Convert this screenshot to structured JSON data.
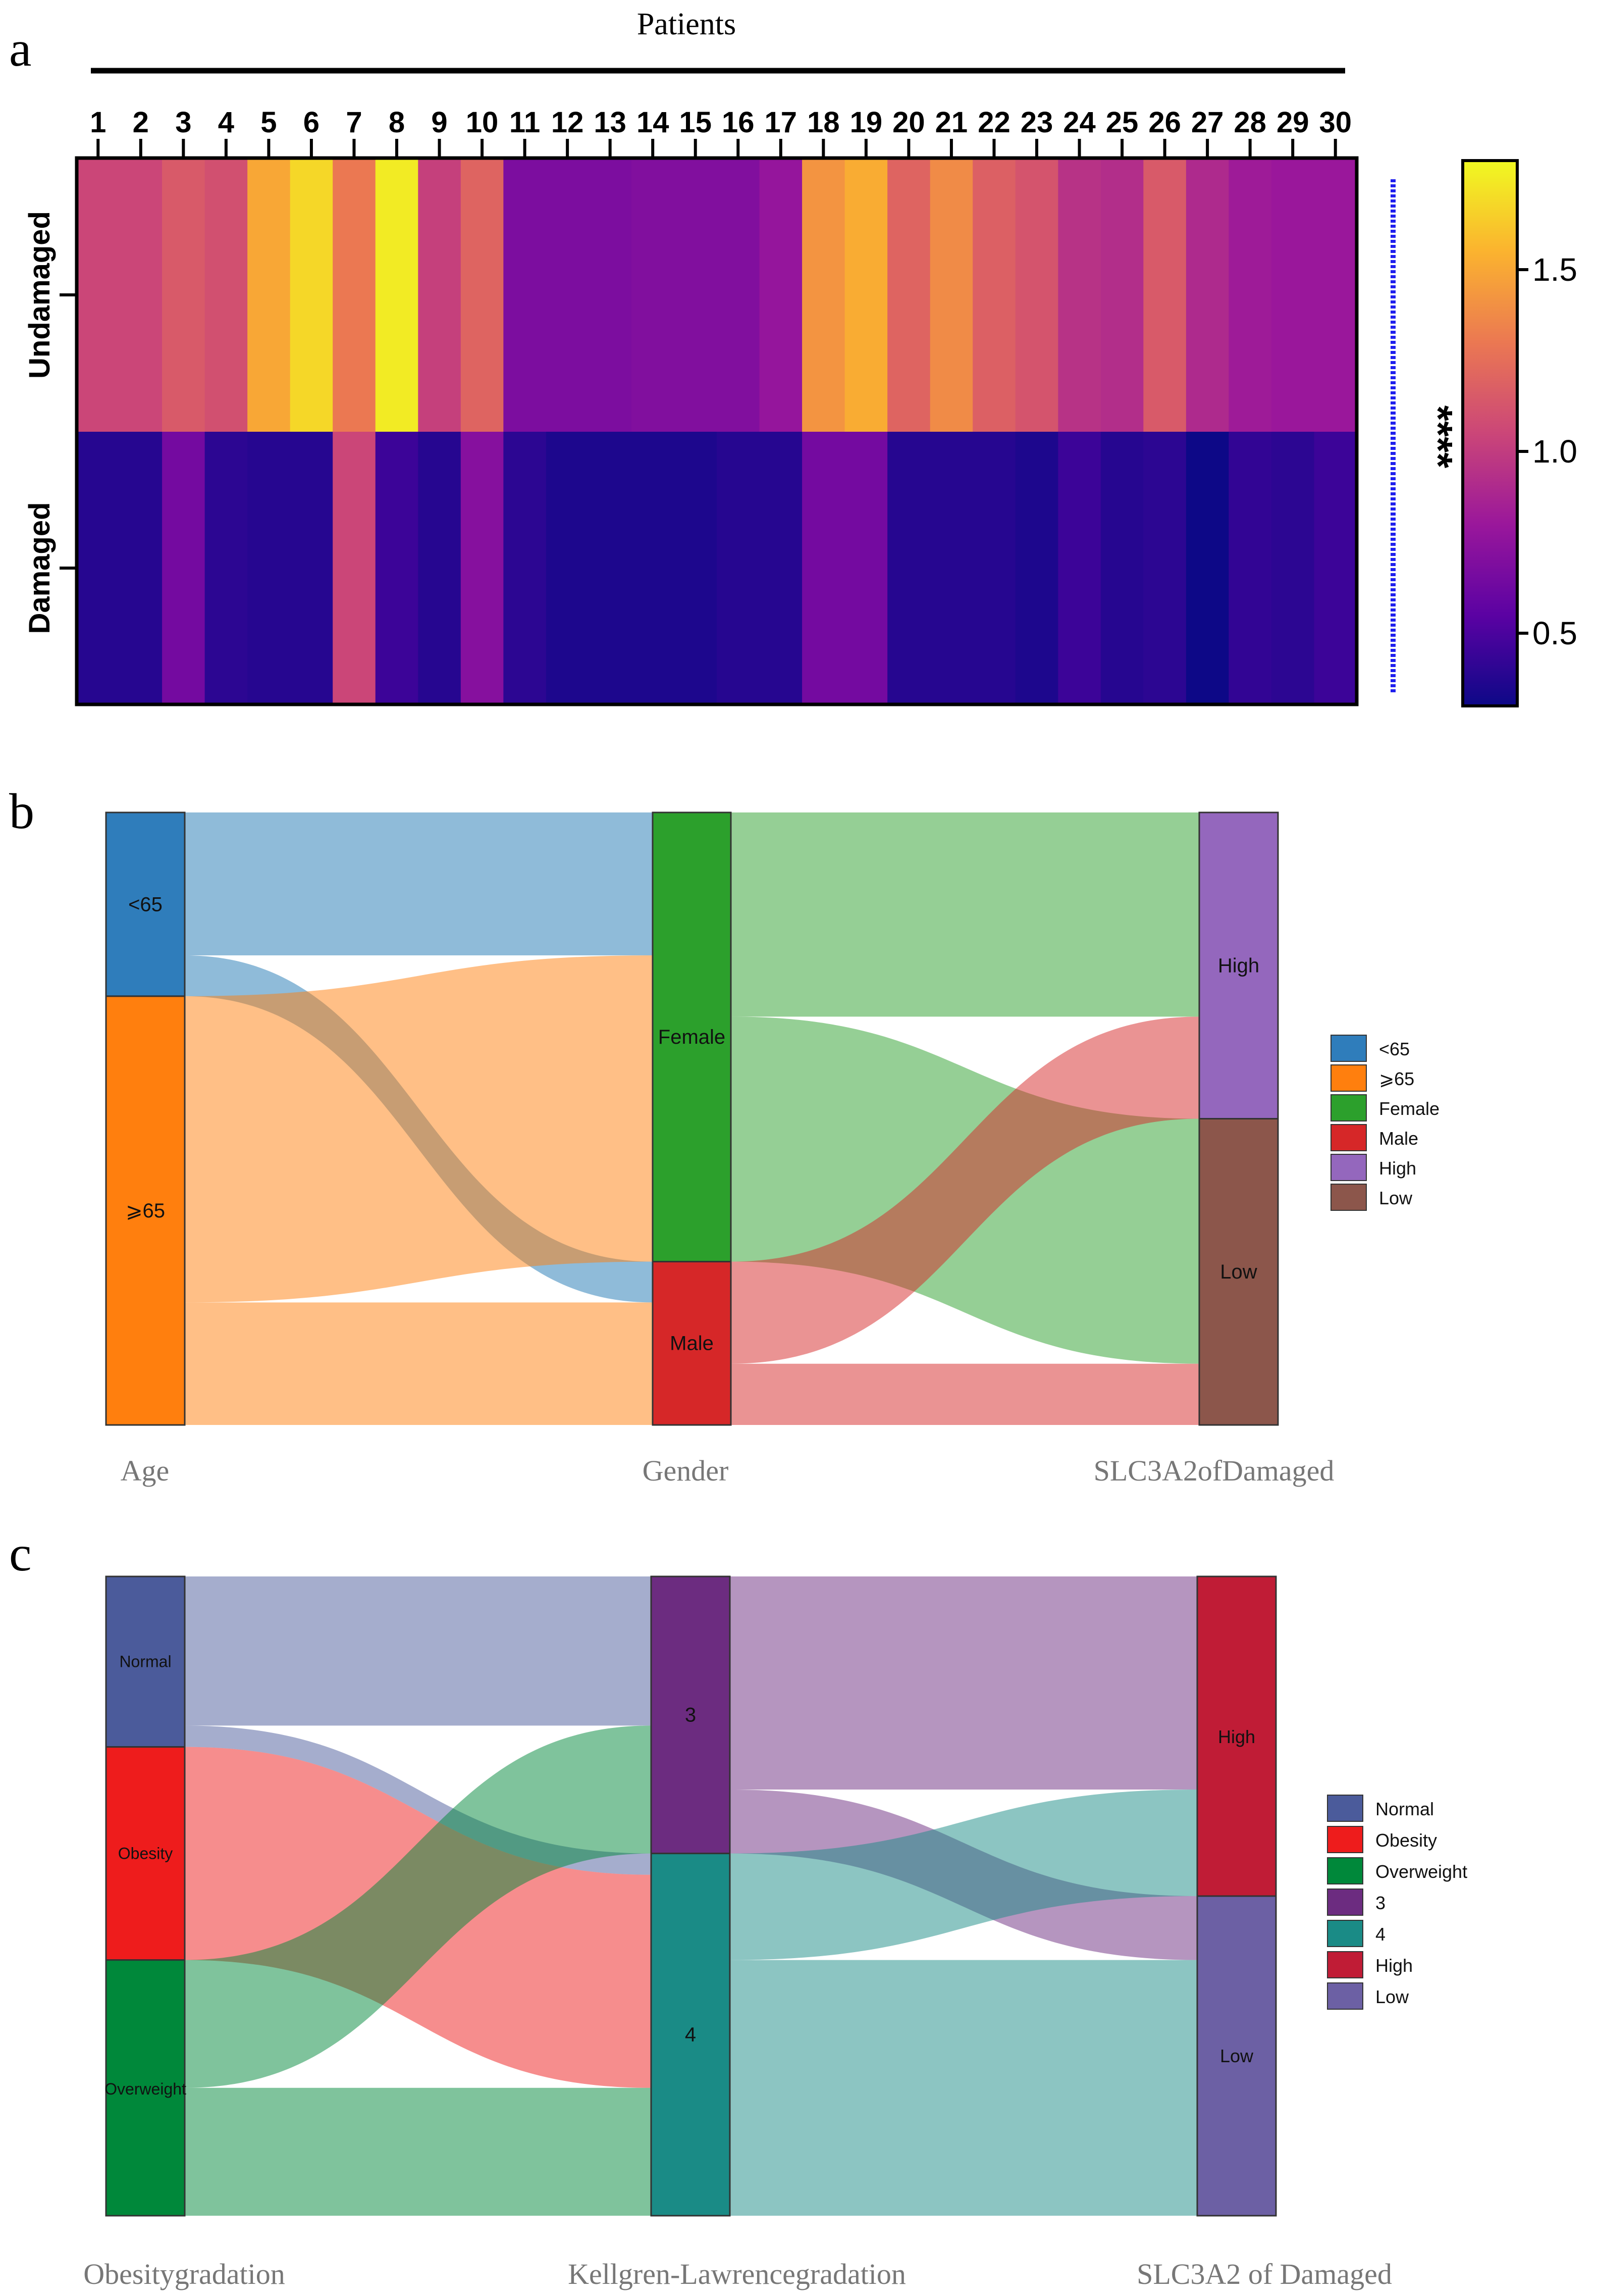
{
  "figure": {
    "panel_labels": [
      "a",
      "b",
      "c"
    ]
  },
  "chart_data": [
    {
      "type": "heatmap",
      "panel": "a",
      "title": "Patients",
      "columns": [
        "1",
        "2",
        "3",
        "4",
        "5",
        "6",
        "7",
        "8",
        "9",
        "10",
        "11",
        "12",
        "13",
        "14",
        "15",
        "16",
        "17",
        "18",
        "19",
        "20",
        "21",
        "22",
        "23",
        "24",
        "25",
        "26",
        "27",
        "28",
        "29",
        "30"
      ],
      "rows": [
        "Undamaged",
        "Damaged"
      ],
      "values": [
        [
          1.05,
          1.05,
          1.15,
          1.1,
          1.5,
          1.68,
          1.3,
          1.75,
          1.02,
          1.2,
          0.68,
          0.68,
          0.68,
          0.7,
          0.7,
          0.7,
          0.78,
          1.42,
          1.52,
          1.2,
          1.38,
          1.18,
          1.12,
          0.95,
          0.92,
          1.15,
          0.9,
          0.82,
          0.8,
          0.8
        ],
        [
          0.38,
          0.38,
          0.65,
          0.4,
          0.38,
          0.38,
          1.05,
          0.45,
          0.38,
          0.72,
          0.4,
          0.35,
          0.35,
          0.35,
          0.35,
          0.38,
          0.38,
          0.65,
          0.65,
          0.38,
          0.38,
          0.38,
          0.35,
          0.45,
          0.38,
          0.4,
          0.3,
          0.42,
          0.4,
          0.45
        ]
      ],
      "colorbar": {
        "ticks": [
          0.5,
          1.0,
          1.5
        ],
        "tick_labels": [
          "0.5",
          "1.0",
          "1.5"
        ],
        "range": [
          0.3,
          1.8
        ]
      },
      "significance": "****",
      "colormap": [
        "#0d0887",
        "#5b02a3",
        "#9a179b",
        "#cb4678",
        "#eb7852",
        "#fbb32f",
        "#f0f921"
      ]
    },
    {
      "type": "alluvial",
      "panel": "b",
      "axes": [
        {
          "title": "Age",
          "categories": [
            {
              "label": "<65",
              "count": 9,
              "color": "#2f7dbb"
            },
            {
              "label": "⩾65",
              "count": 21,
              "color": "#ff7f0e"
            }
          ]
        },
        {
          "title": "Gender",
          "categories": [
            {
              "label": "Female",
              "count": 22,
              "color": "#2ca02c"
            },
            {
              "label": "Male",
              "count": 8,
              "color": "#d62728"
            }
          ]
        },
        {
          "title": "SLC3A2ofDamaged",
          "categories": [
            {
              "label": "High",
              "count": 15,
              "color": "#9467bd"
            },
            {
              "label": "Low",
              "count": 15,
              "color": "#8c564b"
            }
          ]
        }
      ],
      "flows_1": [
        {
          "from": "<65",
          "to": "Female",
          "count": 7,
          "color": "#1f77b4"
        },
        {
          "from": "<65",
          "to": "Male",
          "count": 2,
          "color": "#1f77b4"
        },
        {
          "from": "⩾65",
          "to": "Female",
          "count": 15,
          "color": "#ff7f0e"
        },
        {
          "from": "⩾65",
          "to": "Male",
          "count": 6,
          "color": "#ff7f0e"
        }
      ],
      "flows_2": [
        {
          "from": "Female",
          "to": "High",
          "count": 10,
          "color": "#2ca02c"
        },
        {
          "from": "Female",
          "to": "Low",
          "count": 12,
          "color": "#2ca02c"
        },
        {
          "from": "Male",
          "to": "High",
          "count": 5,
          "color": "#d62728"
        },
        {
          "from": "Male",
          "to": "Low",
          "count": 3,
          "color": "#d62728"
        }
      ],
      "legend": [
        {
          "label": "<65",
          "color": "#2f7dbb"
        },
        {
          "label": "⩾65",
          "color": "#ff7f0e"
        },
        {
          "label": "Female",
          "color": "#2ca02c"
        },
        {
          "label": " Male",
          "color": "#d62728"
        },
        {
          "label": "High",
          "color": "#9467bd"
        },
        {
          "label": "Low",
          "color": "#8c564b"
        }
      ]
    },
    {
      "type": "alluvial",
      "panel": "c",
      "axes": [
        {
          "title": "Obesitygradation",
          "categories": [
            {
              "label": "Normal",
              "count": 8,
              "color": "#4b5b9b"
            },
            {
              "label": "Obesity",
              "count": 10,
              "color": "#ee1c1c"
            },
            {
              "label": "Overweight",
              "count": 12,
              "color": "#00883a"
            }
          ]
        },
        {
          "title": "Kellgren-Lawrencegradation",
          "categories": [
            {
              "label": "3",
              "count": 13,
              "color": "#6c2c80"
            },
            {
              "label": "4",
              "count": 17,
              "color": "#1a8b86"
            }
          ]
        },
        {
          "title": "SLC3A2 of Damaged",
          "categories": [
            {
              "label": "High",
              "count": 15,
              "color": "#c01c36"
            },
            {
              "label": "Low",
              "count": 15,
              "color": "#6c60a4"
            }
          ]
        }
      ],
      "flows_1": [
        {
          "from": "Normal",
          "to": "3",
          "count": 7,
          "color": "#4b5b9b"
        },
        {
          "from": "Normal",
          "to": "4",
          "count": 1,
          "color": "#4b5b9b"
        },
        {
          "from": "Obesity",
          "to": "4",
          "count": 10,
          "color": "#ee1c1c"
        },
        {
          "from": "Overweight",
          "to": "3",
          "count": 6,
          "color": "#00883a"
        },
        {
          "from": "Overweight",
          "to": "4",
          "count": 6,
          "color": "#00883a"
        }
      ],
      "flows_2": [
        {
          "from": "3",
          "to": "High",
          "count": 10,
          "color": "#6c2c80"
        },
        {
          "from": "3",
          "to": "Low",
          "count": 3,
          "color": "#6c2c80"
        },
        {
          "from": "4",
          "to": "High",
          "count": 5,
          "color": "#1a8b86"
        },
        {
          "from": "4",
          "to": "Low",
          "count": 12,
          "color": "#1a8b86"
        }
      ],
      "legend": [
        {
          "label": "Normal",
          "color": "#4b5b9b"
        },
        {
          "label": "Obesity",
          "color": "#ee1c1c"
        },
        {
          "label": "Overweight",
          "color": "#00883a"
        },
        {
          "label": "3",
          "color": "#6c2c80"
        },
        {
          "label": "4",
          "color": "#1a8b86"
        },
        {
          "label": "High",
          "color": "#c01c36"
        },
        {
          "label": "Low",
          "color": "#6c60a4"
        }
      ]
    }
  ]
}
